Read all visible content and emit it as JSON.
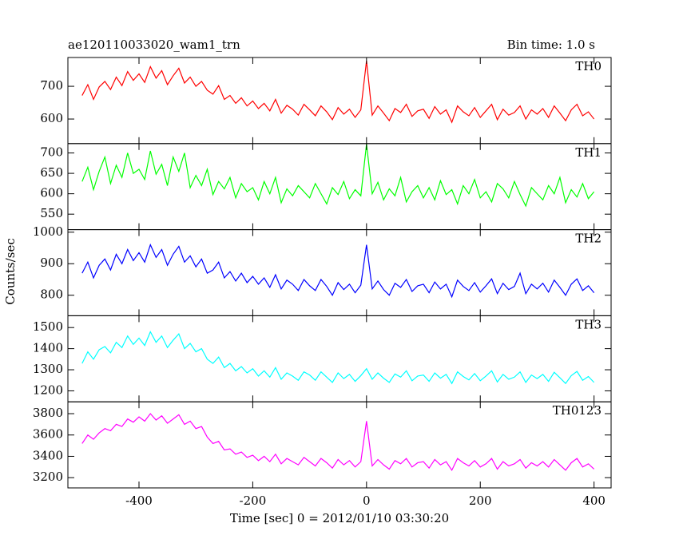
{
  "chart_data": [
    {
      "type": "line",
      "title": "ae120110033020_wam1_trn",
      "subtitle": "Bin time: 1.0 s",
      "name": "TH0",
      "color": "#ff0000",
      "x": [
        -500,
        -490,
        -480,
        -470,
        -460,
        -450,
        -440,
        -430,
        -420,
        -410,
        -400,
        -390,
        -380,
        -370,
        -360,
        -350,
        -340,
        -330,
        -320,
        -310,
        -300,
        -290,
        -280,
        -270,
        -260,
        -250,
        -240,
        -230,
        -220,
        -210,
        -200,
        -190,
        -180,
        -170,
        -160,
        -150,
        -140,
        -130,
        -120,
        -110,
        -100,
        -90,
        -80,
        -70,
        -60,
        -50,
        -40,
        -30,
        -20,
        -10,
        0,
        10,
        20,
        30,
        40,
        50,
        60,
        70,
        80,
        90,
        100,
        110,
        120,
        130,
        140,
        150,
        160,
        170,
        180,
        190,
        200,
        210,
        220,
        230,
        240,
        250,
        260,
        270,
        280,
        290,
        300,
        310,
        320,
        330,
        340,
        350,
        360,
        370,
        380,
        390,
        400
      ],
      "values": [
        672,
        705,
        660,
        698,
        715,
        690,
        728,
        702,
        745,
        718,
        738,
        712,
        760,
        725,
        748,
        705,
        732,
        755,
        710,
        728,
        700,
        715,
        688,
        676,
        702,
        660,
        672,
        648,
        665,
        640,
        655,
        632,
        648,
        625,
        660,
        618,
        642,
        630,
        612,
        645,
        628,
        610,
        640,
        622,
        598,
        635,
        615,
        630,
        605,
        628,
        778,
        612,
        640,
        618,
        595,
        632,
        620,
        645,
        608,
        625,
        630,
        602,
        638,
        615,
        628,
        590,
        640,
        622,
        610,
        635,
        605,
        625,
        645,
        598,
        630,
        612,
        620,
        640,
        600,
        628,
        615,
        632,
        605,
        640,
        618,
        595,
        628,
        645,
        610,
        622,
        600
      ],
      "xlim": [
        -525,
        430
      ],
      "xticks": [
        -400,
        -200,
        0,
        200,
        400
      ],
      "ylim": [
        525,
        788
      ],
      "yticks": [
        600,
        700
      ]
    },
    {
      "type": "line",
      "name": "TH1",
      "color": "#00ff00",
      "x": [
        -500,
        -490,
        -480,
        -470,
        -460,
        -450,
        -440,
        -430,
        -420,
        -410,
        -400,
        -390,
        -380,
        -370,
        -360,
        -350,
        -340,
        -330,
        -320,
        -310,
        -300,
        -290,
        -280,
        -270,
        -260,
        -250,
        -240,
        -230,
        -220,
        -210,
        -200,
        -190,
        -180,
        -170,
        -160,
        -150,
        -140,
        -130,
        -120,
        -110,
        -100,
        -90,
        -80,
        -70,
        -60,
        -50,
        -40,
        -30,
        -20,
        -10,
        0,
        10,
        20,
        30,
        40,
        50,
        60,
        70,
        80,
        90,
        100,
        110,
        120,
        130,
        140,
        150,
        160,
        170,
        180,
        190,
        200,
        210,
        220,
        230,
        240,
        250,
        260,
        270,
        280,
        290,
        300,
        310,
        320,
        330,
        340,
        350,
        360,
        370,
        380,
        390,
        400
      ],
      "values": [
        630,
        665,
        610,
        655,
        690,
        625,
        670,
        640,
        700,
        650,
        660,
        635,
        705,
        648,
        672,
        620,
        690,
        655,
        700,
        615,
        645,
        620,
        660,
        598,
        630,
        612,
        640,
        590,
        625,
        605,
        615,
        585,
        630,
        600,
        640,
        578,
        612,
        595,
        620,
        605,
        590,
        625,
        600,
        575,
        615,
        598,
        630,
        588,
        610,
        595,
        722,
        600,
        628,
        585,
        612,
        595,
        640,
        580,
        605,
        620,
        590,
        615,
        585,
        632,
        598,
        610,
        575,
        620,
        600,
        635,
        590,
        605,
        580,
        625,
        612,
        590,
        630,
        598,
        570,
        615,
        600,
        585,
        620,
        600,
        640,
        578,
        610,
        592,
        625,
        588,
        605
      ],
      "xlim": [
        -525,
        430
      ],
      "xticks": [
        -400,
        -200,
        0,
        200,
        400
      ],
      "ylim": [
        512,
        723
      ],
      "yticks": [
        550,
        600,
        650,
        700
      ]
    },
    {
      "type": "line",
      "name": "TH2",
      "color": "#0000ff",
      "y_label": "Counts/sec",
      "x": [
        -500,
        -490,
        -480,
        -470,
        -460,
        -450,
        -440,
        -430,
        -420,
        -410,
        -400,
        -390,
        -380,
        -370,
        -360,
        -350,
        -340,
        -330,
        -320,
        -310,
        -300,
        -290,
        -280,
        -270,
        -260,
        -250,
        -240,
        -230,
        -220,
        -210,
        -200,
        -190,
        -180,
        -170,
        -160,
        -150,
        -140,
        -130,
        -120,
        -110,
        -100,
        -90,
        -80,
        -70,
        -60,
        -50,
        -40,
        -30,
        -20,
        -10,
        0,
        10,
        20,
        30,
        40,
        50,
        60,
        70,
        80,
        90,
        100,
        110,
        120,
        130,
        140,
        150,
        160,
        170,
        180,
        190,
        200,
        210,
        220,
        230,
        240,
        250,
        260,
        270,
        280,
        290,
        300,
        310,
        320,
        330,
        340,
        350,
        360,
        370,
        380,
        390,
        400
      ],
      "values": [
        870,
        905,
        855,
        895,
        915,
        880,
        930,
        900,
        945,
        910,
        935,
        905,
        960,
        920,
        945,
        895,
        930,
        955,
        905,
        925,
        890,
        915,
        870,
        880,
        905,
        855,
        875,
        845,
        870,
        840,
        860,
        835,
        855,
        825,
        865,
        820,
        848,
        835,
        815,
        850,
        830,
        815,
        850,
        828,
        800,
        840,
        818,
        835,
        808,
        832,
        960,
        820,
        845,
        818,
        800,
        838,
        825,
        850,
        812,
        830,
        835,
        808,
        842,
        820,
        835,
        795,
        848,
        828,
        815,
        840,
        810,
        830,
        852,
        805,
        838,
        818,
        828,
        870,
        805,
        835,
        820,
        838,
        810,
        848,
        825,
        800,
        835,
        852,
        815,
        830,
        808
      ],
      "xlim": [
        -525,
        430
      ],
      "xticks": [
        -400,
        -200,
        0,
        200,
        400
      ],
      "ylim": [
        735,
        1008
      ],
      "yticks": [
        800,
        900,
        1000
      ]
    },
    {
      "type": "line",
      "name": "TH3",
      "color": "#00ffff",
      "x": [
        -500,
        -490,
        -480,
        -470,
        -460,
        -450,
        -440,
        -430,
        -420,
        -410,
        -400,
        -390,
        -380,
        -370,
        -360,
        -350,
        -340,
        -330,
        -320,
        -310,
        -300,
        -290,
        -280,
        -270,
        -260,
        -250,
        -240,
        -230,
        -220,
        -210,
        -200,
        -190,
        -180,
        -170,
        -160,
        -150,
        -140,
        -130,
        -120,
        -110,
        -100,
        -90,
        -80,
        -70,
        -60,
        -50,
        -40,
        -30,
        -20,
        -10,
        0,
        10,
        20,
        30,
        40,
        50,
        60,
        70,
        80,
        90,
        100,
        110,
        120,
        130,
        140,
        150,
        160,
        170,
        180,
        190,
        200,
        210,
        220,
        230,
        240,
        250,
        260,
        270,
        280,
        290,
        300,
        310,
        320,
        330,
        340,
        350,
        360,
        370,
        380,
        390,
        400
      ],
      "values": [
        1330,
        1385,
        1350,
        1395,
        1410,
        1380,
        1430,
        1405,
        1460,
        1420,
        1450,
        1415,
        1480,
        1430,
        1460,
        1405,
        1440,
        1470,
        1400,
        1425,
        1385,
        1400,
        1350,
        1330,
        1360,
        1310,
        1330,
        1295,
        1315,
        1285,
        1305,
        1270,
        1295,
        1265,
        1310,
        1255,
        1285,
        1270,
        1250,
        1290,
        1275,
        1250,
        1290,
        1265,
        1240,
        1285,
        1258,
        1278,
        1245,
        1272,
        1305,
        1255,
        1285,
        1260,
        1240,
        1280,
        1265,
        1295,
        1248,
        1270,
        1275,
        1245,
        1285,
        1260,
        1278,
        1235,
        1290,
        1268,
        1252,
        1282,
        1248,
        1270,
        1295,
        1242,
        1278,
        1255,
        1265,
        1290,
        1240,
        1275,
        1258,
        1278,
        1245,
        1288,
        1262,
        1235,
        1272,
        1292,
        1250,
        1268,
        1240
      ],
      "xlim": [
        -525,
        430
      ],
      "xticks": [
        -400,
        -200,
        0,
        200,
        400
      ],
      "ylim": [
        1148,
        1556
      ],
      "yticks": [
        1200,
        1300,
        1400,
        1500
      ]
    },
    {
      "type": "line",
      "name": "TH0123",
      "color": "#ff00ff",
      "x_label": "Time [sec] 0 = 2012/01/10 03:30:20",
      "x": [
        -500,
        -490,
        -480,
        -470,
        -460,
        -450,
        -440,
        -430,
        -420,
        -410,
        -400,
        -390,
        -380,
        -370,
        -360,
        -350,
        -340,
        -330,
        -320,
        -310,
        -300,
        -290,
        -280,
        -270,
        -260,
        -250,
        -240,
        -230,
        -220,
        -210,
        -200,
        -190,
        -180,
        -170,
        -160,
        -150,
        -140,
        -130,
        -120,
        -110,
        -100,
        -90,
        -80,
        -70,
        -60,
        -50,
        -40,
        -30,
        -20,
        -10,
        0,
        10,
        20,
        30,
        40,
        50,
        60,
        70,
        80,
        90,
        100,
        110,
        120,
        130,
        140,
        150,
        160,
        170,
        180,
        190,
        200,
        210,
        220,
        230,
        240,
        250,
        260,
        270,
        280,
        290,
        300,
        310,
        320,
        330,
        340,
        350,
        360,
        370,
        380,
        390,
        400
      ],
      "values": [
        3520,
        3600,
        3560,
        3620,
        3660,
        3640,
        3700,
        3680,
        3750,
        3720,
        3770,
        3730,
        3800,
        3740,
        3780,
        3710,
        3750,
        3790,
        3700,
        3730,
        3660,
        3680,
        3580,
        3520,
        3540,
        3460,
        3470,
        3420,
        3440,
        3390,
        3410,
        3360,
        3400,
        3350,
        3420,
        3330,
        3380,
        3350,
        3320,
        3390,
        3350,
        3310,
        3380,
        3340,
        3290,
        3370,
        3320,
        3360,
        3300,
        3350,
        3730,
        3310,
        3370,
        3320,
        3280,
        3360,
        3330,
        3380,
        3300,
        3340,
        3350,
        3290,
        3370,
        3320,
        3350,
        3270,
        3380,
        3340,
        3310,
        3360,
        3300,
        3330,
        3380,
        3280,
        3350,
        3310,
        3330,
        3370,
        3290,
        3340,
        3310,
        3350,
        3300,
        3370,
        3320,
        3270,
        3340,
        3380,
        3300,
        3330,
        3280
      ],
      "xlim": [
        -525,
        430
      ],
      "xticks": [
        -400,
        -200,
        0,
        200,
        400
      ],
      "ylim": [
        3104,
        3911
      ],
      "yticks": [
        3200,
        3400,
        3600,
        3800
      ]
    }
  ]
}
